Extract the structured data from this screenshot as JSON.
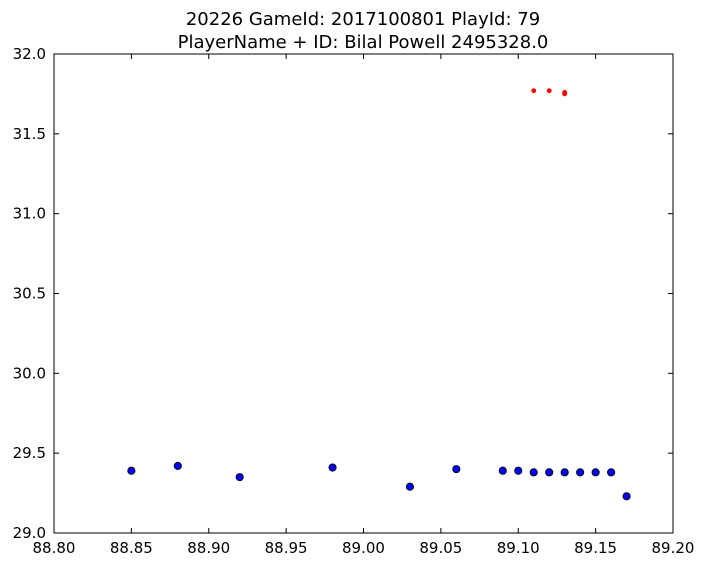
{
  "chart_data": {
    "type": "scatter",
    "title": "20226 GameId: 2017100801 PlayId: 79",
    "subtitle": "PlayerName + ID: Bilal Powell 2495328.0",
    "xlabel": "",
    "ylabel": "",
    "xlim": [
      88.8,
      89.2
    ],
    "ylim": [
      29.0,
      32.0
    ],
    "x_ticks": [
      "88.80",
      "88.85",
      "88.90",
      "88.95",
      "89.00",
      "89.05",
      "89.10",
      "89.15",
      "89.20"
    ],
    "y_ticks": [
      "29.0",
      "29.5",
      "30.0",
      "30.5",
      "31.0",
      "31.5",
      "32.0"
    ],
    "grid": false,
    "series": [
      {
        "color": "#0000ff",
        "marker": "circle-large",
        "points": [
          {
            "x": 88.85,
            "y": 29.39
          },
          {
            "x": 88.88,
            "y": 29.42
          },
          {
            "x": 88.92,
            "y": 29.35
          },
          {
            "x": 88.98,
            "y": 29.41
          },
          {
            "x": 89.03,
            "y": 29.29
          },
          {
            "x": 89.06,
            "y": 29.4
          },
          {
            "x": 89.09,
            "y": 29.39
          },
          {
            "x": 89.1,
            "y": 29.39
          },
          {
            "x": 89.11,
            "y": 29.38
          },
          {
            "x": 89.12,
            "y": 29.38
          },
          {
            "x": 89.13,
            "y": 29.38
          },
          {
            "x": 89.14,
            "y": 29.38
          },
          {
            "x": 89.15,
            "y": 29.38
          },
          {
            "x": 89.16,
            "y": 29.38
          },
          {
            "x": 89.17,
            "y": 29.23
          }
        ]
      },
      {
        "color": "#ff0000",
        "marker": "circle-small",
        "points": [
          {
            "x": 89.11,
            "y": 31.77
          },
          {
            "x": 89.12,
            "y": 31.77
          },
          {
            "x": 89.13,
            "y": 31.76
          },
          {
            "x": 89.13,
            "y": 31.75
          }
        ]
      }
    ]
  }
}
